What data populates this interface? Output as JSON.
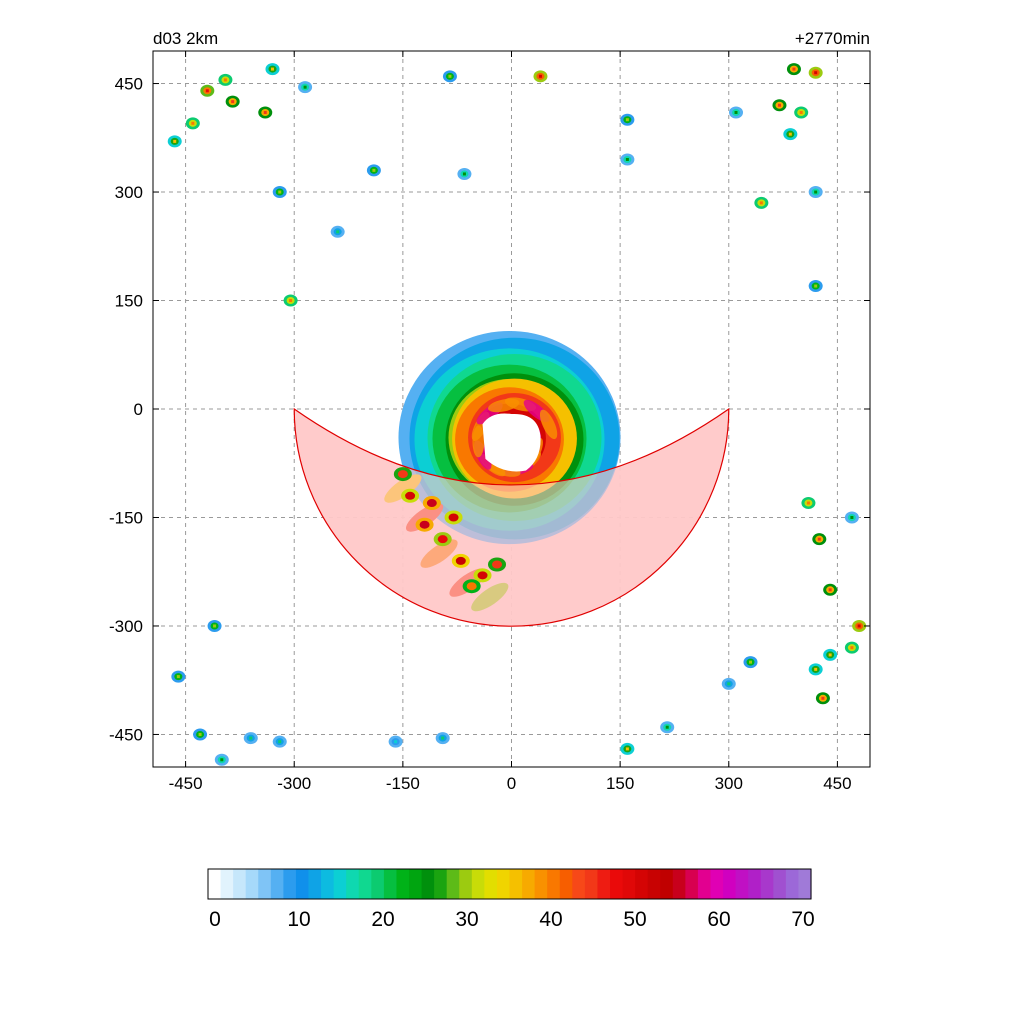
{
  "chart_data": {
    "type": "heatmap",
    "title_left": "d03 2km",
    "title_right": "+2770min",
    "xlabel": "",
    "ylabel": "",
    "xlim": [
      -495,
      495
    ],
    "ylim": [
      -495,
      495
    ],
    "x_ticks": [
      -450,
      -300,
      -150,
      0,
      150,
      300,
      450
    ],
    "y_ticks": [
      450,
      300,
      150,
      0,
      -150,
      -300,
      -450
    ],
    "grid": true,
    "storm": {
      "center": [
        0,
        -45
      ],
      "eye_radius": 40,
      "inner_core_radius": 100,
      "outer_radius": 145,
      "field_max": 55
    },
    "sector": {
      "center": [
        0,
        0
      ],
      "radius": 300,
      "start_angle_deg": 180,
      "end_angle_deg": 360,
      "fill_color": "#ffc8c8",
      "edge_color": "#e00000",
      "inner_edge_y_at_center": -105
    },
    "isolated_cells": [
      [
        -420,
        440,
        48
      ],
      [
        -395,
        455,
        40
      ],
      [
        -385,
        425,
        45
      ],
      [
        -465,
        370,
        35
      ],
      [
        -440,
        395,
        40
      ],
      [
        -340,
        410,
        45
      ],
      [
        -330,
        470,
        35
      ],
      [
        -320,
        300,
        30
      ],
      [
        -285,
        445,
        25
      ],
      [
        -190,
        330,
        30
      ],
      [
        -85,
        460,
        30
      ],
      [
        40,
        460,
        50
      ],
      [
        -65,
        325,
        25
      ],
      [
        160,
        400,
        30
      ],
      [
        160,
        345,
        25
      ],
      [
        -305,
        150,
        40
      ],
      [
        -240,
        245,
        20
      ],
      [
        390,
        470,
        45
      ],
      [
        420,
        465,
        50
      ],
      [
        370,
        420,
        45
      ],
      [
        400,
        410,
        40
      ],
      [
        310,
        410,
        25
      ],
      [
        345,
        285,
        40
      ],
      [
        420,
        170,
        30
      ],
      [
        385,
        380,
        35
      ],
      [
        420,
        300,
        25
      ],
      [
        410,
        -130,
        40
      ],
      [
        425,
        -180,
        45
      ],
      [
        470,
        -150,
        25
      ],
      [
        440,
        -250,
        45
      ],
      [
        480,
        -300,
        50
      ],
      [
        470,
        -330,
        40
      ],
      [
        440,
        -340,
        35
      ],
      [
        430,
        -400,
        45
      ],
      [
        420,
        -360,
        35
      ],
      [
        330,
        -350,
        30
      ],
      [
        300,
        -380,
        20
      ],
      [
        160,
        -470,
        35
      ],
      [
        215,
        -440,
        25
      ],
      [
        -410,
        -300,
        30
      ],
      [
        -460,
        -370,
        30
      ],
      [
        -430,
        -450,
        30
      ],
      [
        -400,
        -485,
        25
      ],
      [
        -360,
        -455,
        20
      ],
      [
        -320,
        -460,
        20
      ],
      [
        -160,
        -460,
        15
      ],
      [
        -95,
        -455,
        20
      ]
    ]
  },
  "colorbar": {
    "min": 0,
    "max": 70,
    "tick_labels": [
      "0",
      "10",
      "20",
      "30",
      "40",
      "50",
      "60",
      "70"
    ],
    "colors": [
      "#ffffff",
      "#e1f3fd",
      "#c6e7fb",
      "#a6d9fa",
      "#7fc4f6",
      "#55b0f2",
      "#2c9cee",
      "#1090eb",
      "#0fa3e6",
      "#0dbbe0",
      "#0ccfd4",
      "#0fd8b0",
      "#10d890",
      "#0ccb70",
      "#06bf40",
      "#00b218",
      "#00a510",
      "#00900c",
      "#1aa410",
      "#5dbb18",
      "#9ccb10",
      "#c8dc08",
      "#e2de00",
      "#f0d400",
      "#f5c000",
      "#f7aa00",
      "#f99100",
      "#f97800",
      "#f75e00",
      "#f74818",
      "#f23818",
      "#ee1c12",
      "#ea0a0a",
      "#e00808",
      "#d40404",
      "#c80202",
      "#c00000",
      "#c8001c",
      "#d80050",
      "#e20090",
      "#e000b4",
      "#d000c0",
      "#c010c4",
      "#b020c8",
      "#a838cc",
      "#a050d0",
      "#9c68d8",
      "#a07ad8"
    ]
  }
}
